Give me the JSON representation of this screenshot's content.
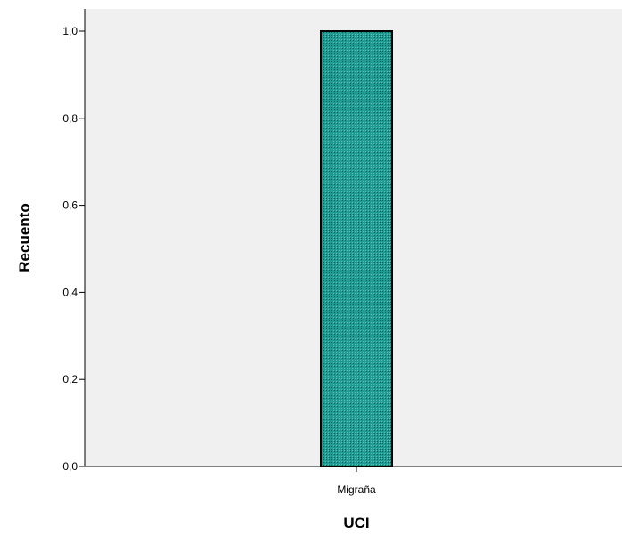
{
  "chart_data": {
    "type": "bar",
    "categories": [
      "Migraña"
    ],
    "values": [
      1.0
    ],
    "xlabel": "UCI",
    "ylabel": "Recuento",
    "ylim": [
      0,
      1.0
    ],
    "yticks": [
      "0,0",
      "0,2",
      "0,4",
      "0,6",
      "0,8",
      "1,0"
    ],
    "grid": false,
    "colors": {
      "plot_background": "#f0f0f0",
      "bar_fill": "#1e9c94",
      "bar_outline": "#000000",
      "axis": "#000000"
    }
  }
}
